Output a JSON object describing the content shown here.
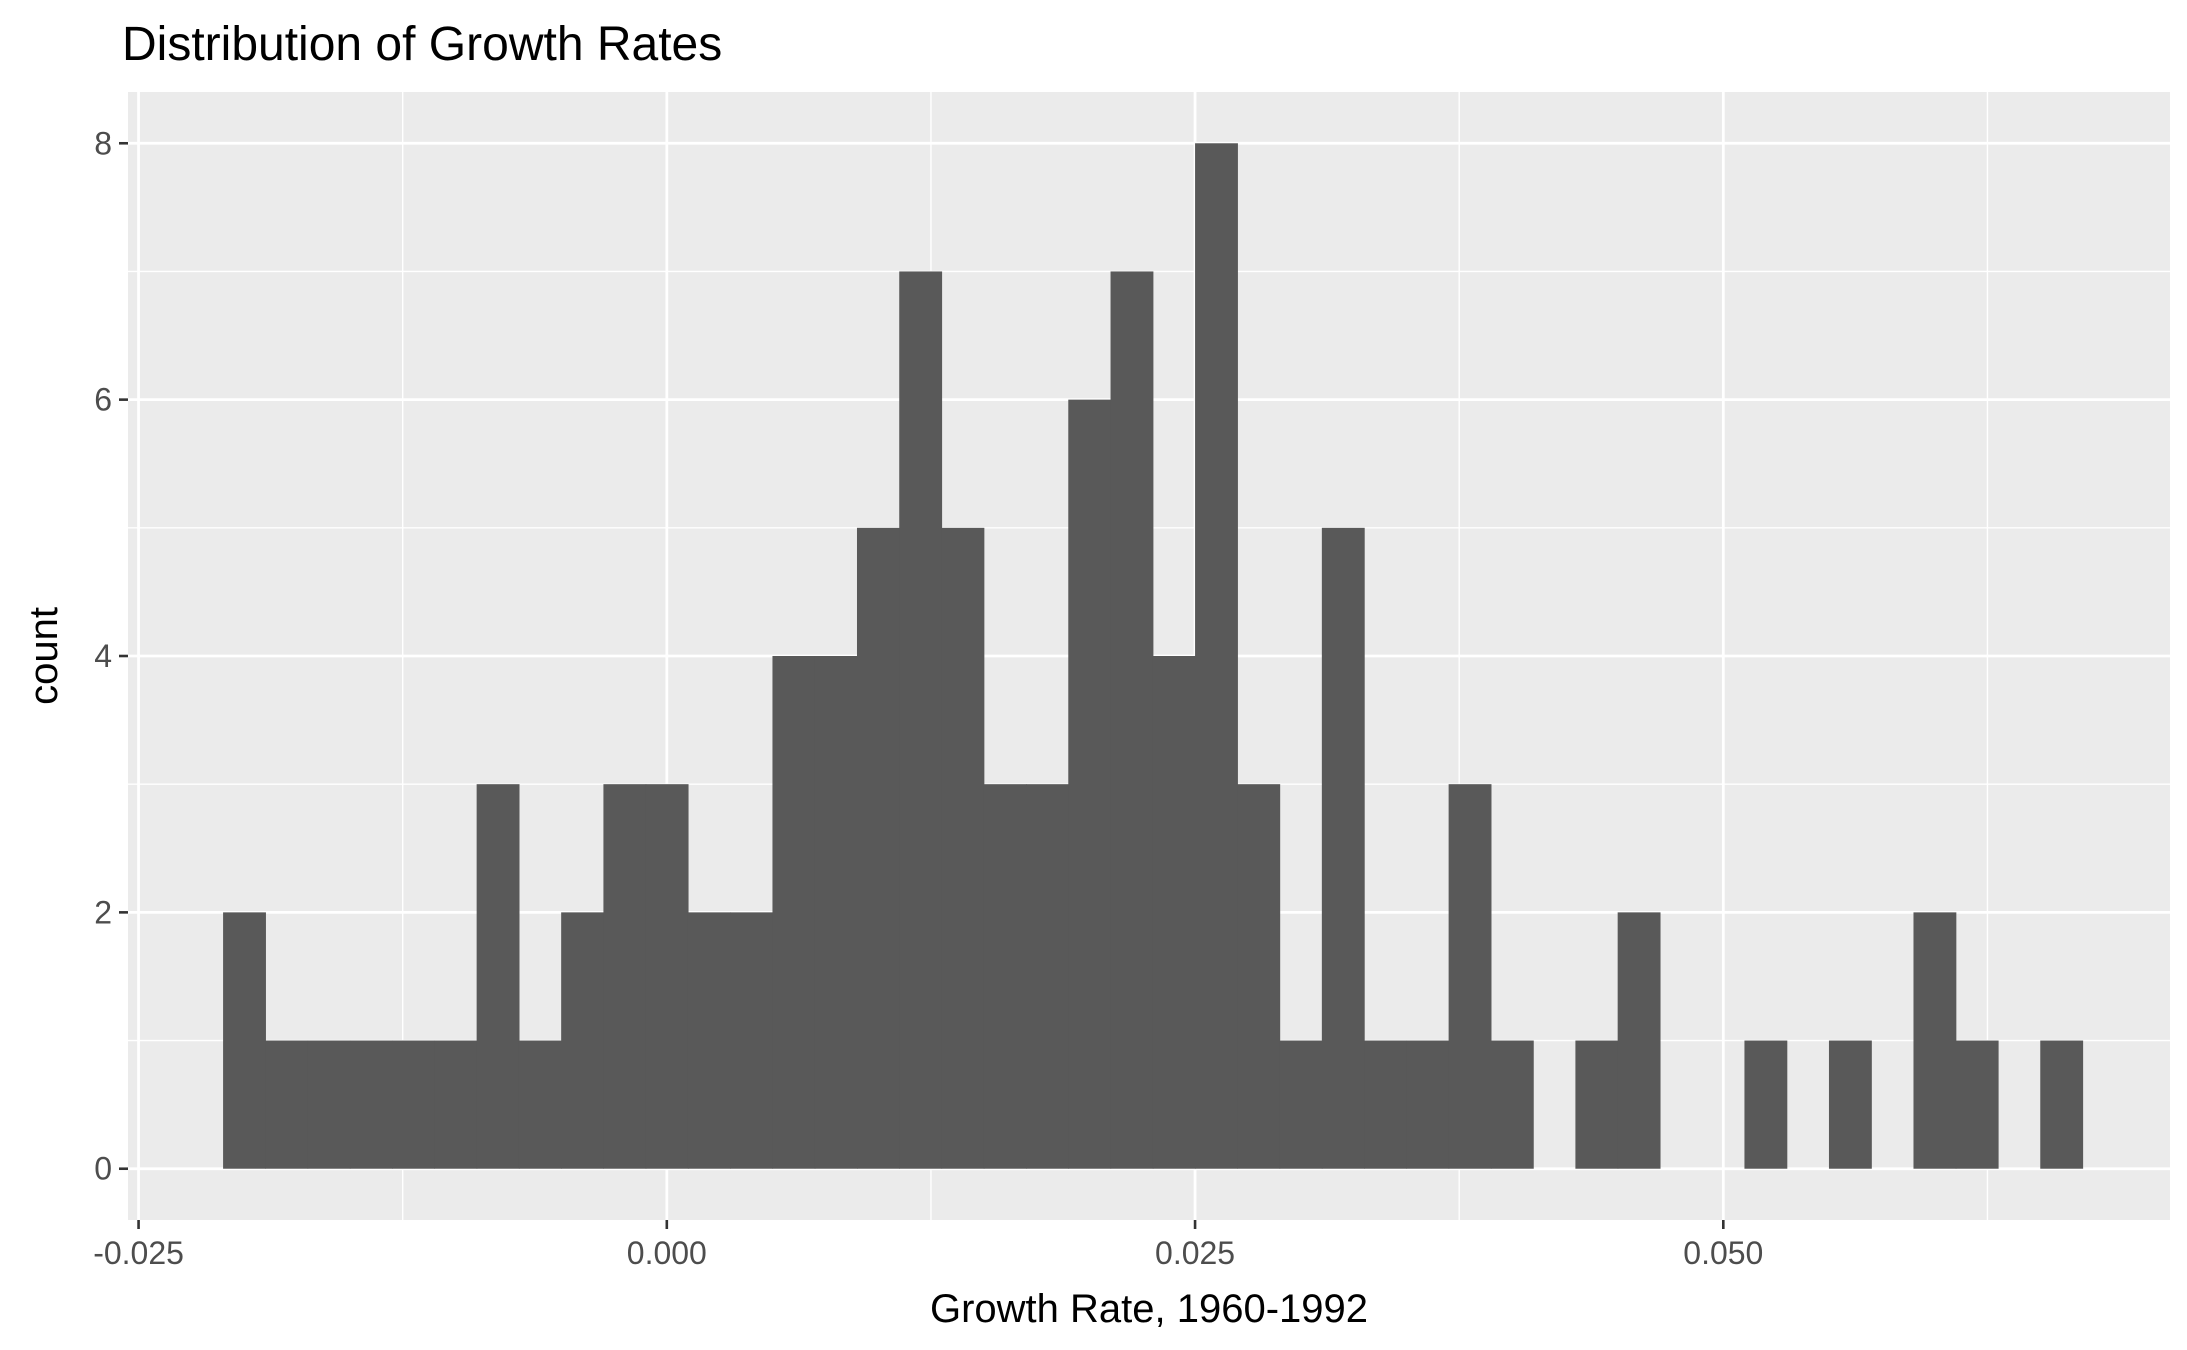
{
  "chart_data": {
    "type": "bar",
    "title": "Distribution of Growth Rates",
    "xlabel": "Growth Rate, 1960-1992",
    "ylabel": "count",
    "xlim": [
      -0.0255,
      0.07114
    ],
    "ylim": [
      -0.4,
      8.4
    ],
    "x_ticks": [
      -0.025,
      0.0,
      0.025,
      0.05
    ],
    "x_tick_labels": [
      "-0.025",
      "0.000",
      "0.025",
      "0.050"
    ],
    "y_ticks": [
      0,
      2,
      4,
      6,
      8
    ],
    "y_tick_labels": [
      "0",
      "2",
      "4",
      "6",
      "8"
    ],
    "grid": true,
    "panel_color": "#ebebeb",
    "bar_color": "#595959",
    "bin_width": 0.002,
    "bins_start": -0.021,
    "values": [
      2,
      1,
      1,
      1,
      1,
      1,
      3,
      1,
      2,
      3,
      3,
      2,
      2,
      4,
      4,
      5,
      7,
      5,
      3,
      3,
      6,
      7,
      4,
      8,
      3,
      1,
      5,
      1,
      1,
      3,
      1,
      0,
      1,
      2,
      0,
      0,
      1,
      0,
      1,
      0,
      2,
      1,
      0,
      1
    ]
  }
}
